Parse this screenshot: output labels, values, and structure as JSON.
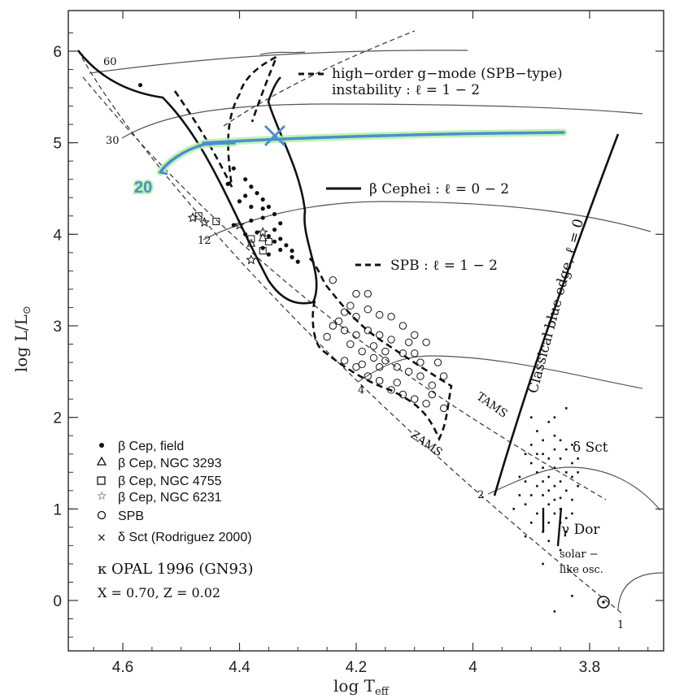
{
  "chart_data": {
    "type": "scatter",
    "xlabel": "log T",
    "xlabel_sub": "eff",
    "ylabel": "log L/L",
    "ylabel_sub": "⊙",
    "xlim": [
      4.7,
      3.65
    ],
    "ylim": [
      -0.5,
      6.5
    ],
    "x_ticks": [
      {
        "value": 4.6,
        "label": "4.6"
      },
      {
        "value": 4.4,
        "label": "4.4"
      },
      {
        "value": 4.2,
        "label": "4.2"
      },
      {
        "value": 4.0,
        "label": "4"
      },
      {
        "value": 3.8,
        "label": "3.8"
      }
    ],
    "y_ticks": [
      {
        "value": 0,
        "label": "0"
      },
      {
        "value": 1,
        "label": "1"
      },
      {
        "value": 2,
        "label": "2"
      },
      {
        "value": 3,
        "label": "3"
      },
      {
        "value": 4,
        "label": "4"
      },
      {
        "value": 5,
        "label": "5"
      },
      {
        "value": 6,
        "label": "6"
      }
    ],
    "annotations": {
      "gmode_line1": "high−order g−mode (SPB−type)",
      "gmode_line2": "instability : ℓ = 1 − 2",
      "beta_cephei": "β Cephei : ℓ = 0 − 2",
      "spb": "SPB : ℓ = 1 − 2",
      "classical_blue_edge": "Classical blue edge, ℓ = 0",
      "tams": "TAMS",
      "zams": "ZAMS",
      "delta_sct": "δ Sct",
      "gamma_dor": "γ Dor",
      "solar_like_1": "solar −",
      "solar_like_2": "like osc.",
      "opal": "κ OPAL 1996 (GN93)",
      "composition": "X = 0.70,  Z = 0.02",
      "highlight_mass": "20"
    },
    "track_masses": [
      "60",
      "30",
      "12",
      "4",
      "2",
      "1"
    ],
    "legend": [
      {
        "symbol": "dot",
        "label": "β Cep, field"
      },
      {
        "symbol": "triangle",
        "label": "β Cep, NGC 3293"
      },
      {
        "symbol": "square",
        "label": "β Cep, NGC 4755"
      },
      {
        "symbol": "star",
        "label": "β Cep, NGC 6231"
      },
      {
        "symbol": "circle",
        "label": "SPB"
      },
      {
        "symbol": "cross",
        "label": "δ Sct  (Rodriguez 2000)"
      }
    ],
    "series": [
      {
        "name": "β Cep, field",
        "symbol": "dot",
        "points": [
          [
            4.57,
            5.63
          ],
          [
            4.41,
            4.72
          ],
          [
            4.42,
            4.55
          ],
          [
            4.39,
            4.6
          ],
          [
            4.38,
            4.52
          ],
          [
            4.37,
            4.45
          ],
          [
            4.36,
            4.38
          ],
          [
            4.35,
            4.3
          ],
          [
            4.34,
            4.22
          ],
          [
            4.33,
            4.12
          ],
          [
            4.36,
            4.18
          ],
          [
            4.38,
            4.3
          ],
          [
            4.4,
            4.36
          ],
          [
            4.37,
            4.02
          ],
          [
            4.35,
            3.98
          ],
          [
            4.34,
            3.92
          ],
          [
            4.33,
            3.95
          ],
          [
            4.32,
            3.88
          ],
          [
            4.31,
            3.82
          ],
          [
            4.36,
            3.85
          ],
          [
            4.39,
            4.0
          ],
          [
            4.41,
            4.1
          ],
          [
            4.38,
            4.15
          ],
          [
            4.34,
            4.05
          ],
          [
            4.31,
            3.75
          ],
          [
            4.3,
            3.7
          ],
          [
            4.35,
            3.78
          ],
          [
            4.33,
            3.83
          ],
          [
            4.39,
            4.42
          ],
          [
            4.36,
            4.28
          ]
        ]
      },
      {
        "name": "β Cep, NGC 3293",
        "symbol": "triangle",
        "points": [
          [
            4.38,
            3.9
          ],
          [
            4.36,
            3.96
          ]
        ]
      },
      {
        "name": "β Cep, NGC 4755",
        "symbol": "square",
        "points": [
          [
            4.47,
            4.2
          ],
          [
            4.44,
            4.14
          ],
          [
            4.38,
            3.95
          ],
          [
            4.36,
            3.82
          ],
          [
            4.35,
            3.92
          ]
        ]
      },
      {
        "name": "β Cep, NGC 6231",
        "symbol": "star",
        "points": [
          [
            4.48,
            4.18
          ],
          [
            4.46,
            4.13
          ],
          [
            4.4,
            4.1
          ],
          [
            4.38,
            3.72
          ],
          [
            4.36,
            4.02
          ]
        ]
      },
      {
        "name": "SPB",
        "symbol": "circle",
        "points": [
          [
            4.24,
            3.5
          ],
          [
            4.2,
            3.35
          ],
          [
            4.18,
            3.35
          ],
          [
            4.22,
            3.15
          ],
          [
            4.2,
            3.1
          ],
          [
            4.18,
            3.18
          ],
          [
            4.16,
            3.12
          ],
          [
            4.14,
            3.1
          ],
          [
            4.12,
            3.0
          ],
          [
            4.1,
            2.9
          ],
          [
            4.08,
            2.82
          ],
          [
            4.12,
            2.7
          ],
          [
            4.14,
            2.85
          ],
          [
            4.16,
            2.9
          ],
          [
            4.18,
            2.95
          ],
          [
            4.2,
            2.9
          ],
          [
            4.22,
            2.95
          ],
          [
            4.24,
            3.0
          ],
          [
            4.21,
            2.8
          ],
          [
            4.19,
            2.72
          ],
          [
            4.17,
            2.65
          ],
          [
            4.15,
            2.62
          ],
          [
            4.13,
            2.55
          ],
          [
            4.11,
            2.5
          ],
          [
            4.09,
            2.45
          ],
          [
            4.07,
            2.35
          ],
          [
            4.05,
            2.45
          ],
          [
            4.06,
            2.6
          ],
          [
            4.1,
            2.7
          ],
          [
            4.2,
            2.55
          ],
          [
            4.18,
            2.45
          ],
          [
            4.16,
            2.4
          ],
          [
            4.14,
            2.3
          ],
          [
            4.12,
            2.25
          ],
          [
            4.1,
            2.2
          ],
          [
            4.08,
            2.15
          ],
          [
            4.05,
            2.1
          ],
          [
            4.15,
            2.72
          ],
          [
            4.11,
            2.82
          ],
          [
            4.22,
            2.62
          ],
          [
            4.17,
            2.78
          ],
          [
            4.13,
            2.38
          ],
          [
            4.09,
            2.6
          ],
          [
            4.07,
            2.25
          ],
          [
            4.19,
            2.58
          ],
          [
            4.16,
            2.55
          ],
          [
            4.21,
            3.22
          ],
          [
            4.23,
            3.05
          ],
          [
            4.25,
            2.88
          ]
        ]
      }
    ],
    "delta_sct_points": [
      [
        3.91,
        1.6
      ],
      [
        3.9,
        1.5
      ],
      [
        3.89,
        1.4
      ],
      [
        3.88,
        1.3
      ],
      [
        3.87,
        1.2
      ],
      [
        3.86,
        1.1
      ],
      [
        3.85,
        1.0
      ],
      [
        3.84,
        0.9
      ],
      [
        3.83,
        1.5
      ],
      [
        3.82,
        1.4
      ],
      [
        3.86,
        1.65
      ],
      [
        3.87,
        1.55
      ],
      [
        3.88,
        1.45
      ],
      [
        3.89,
        1.25
      ],
      [
        3.9,
        1.15
      ],
      [
        3.91,
        1.05
      ],
      [
        3.92,
        1.35
      ],
      [
        3.85,
        1.3
      ],
      [
        3.84,
        1.2
      ],
      [
        3.83,
        1.1
      ],
      [
        3.86,
        0.95
      ],
      [
        3.87,
        0.85
      ],
      [
        3.88,
        0.75
      ],
      [
        3.89,
        1.85
      ],
      [
        3.88,
        1.75
      ],
      [
        3.87,
        1.95
      ],
      [
        3.86,
        1.45
      ],
      [
        3.85,
        1.55
      ],
      [
        3.84,
        1.65
      ],
      [
        3.83,
        1.35
      ],
      [
        3.82,
        1.25
      ],
      [
        3.9,
        1.7
      ],
      [
        3.91,
        1.3
      ],
      [
        3.92,
        1.15
      ],
      [
        3.93,
        1.0
      ],
      [
        3.87,
        1.05
      ],
      [
        3.86,
        1.25
      ],
      [
        3.85,
        0.85
      ],
      [
        3.84,
        0.75
      ],
      [
        3.83,
        0.95
      ],
      [
        3.88,
        1.6
      ],
      [
        3.89,
        0.95
      ],
      [
        3.85,
        1.75
      ],
      [
        3.86,
        2.0
      ],
      [
        3.84,
        1.4
      ],
      [
        3.87,
        0.65
      ],
      [
        3.9,
        0.85
      ],
      [
        3.82,
        1.55
      ],
      [
        3.88,
        1.15
      ],
      [
        3.83,
        1.7
      ],
      [
        3.86,
        -0.12
      ],
      [
        3.83,
        0.05
      ],
      [
        3.91,
        0.7
      ],
      [
        3.85,
        0.55
      ],
      [
        3.88,
        0.4
      ],
      [
        3.9,
        2.0
      ],
      [
        3.84,
        2.1
      ],
      [
        3.86,
        1.8
      ],
      [
        3.89,
        1.6
      ],
      [
        3.87,
        1.35
      ],
      [
        3.85,
        1.12
      ]
    ],
    "highlight_track": {
      "color": "#4a8fcf",
      "glow": "#b9f0a8"
    }
  }
}
